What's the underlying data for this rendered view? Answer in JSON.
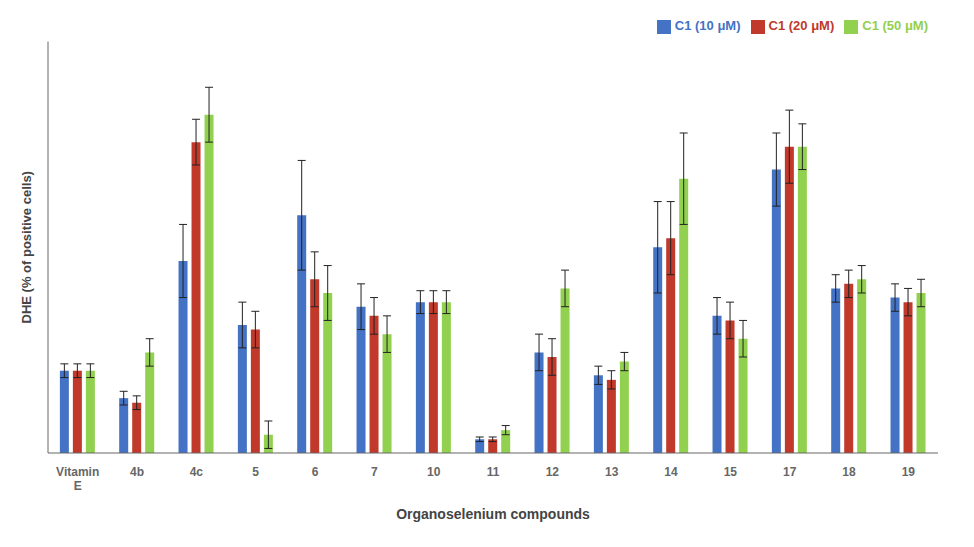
{
  "chart_data": {
    "type": "bar",
    "xlabel": "Organoselenium compounds",
    "ylabel": "DHE  (% of positive cells)",
    "categories": [
      "Vitamin\nE",
      "4b",
      "4c",
      "5",
      "6",
      "7",
      "10",
      "11",
      "12",
      "13",
      "14",
      "15",
      "17",
      "18",
      "19"
    ],
    "series": [
      {
        "name": "C1 (10 μM)",
        "color": "#4472C4",
        "values": [
          18,
          12,
          42,
          28,
          52,
          32,
          33,
          3,
          22,
          17,
          45,
          30,
          62,
          36,
          34
        ],
        "errors": [
          1.5,
          1.5,
          8,
          5,
          12,
          5,
          2.5,
          0.5,
          4,
          2,
          10,
          4,
          8,
          3,
          3
        ]
      },
      {
        "name": "C1 (20 μM)",
        "color": "#C0392B",
        "values": [
          18,
          11,
          68,
          27,
          38,
          30,
          33,
          3,
          21,
          16,
          47,
          29,
          67,
          37,
          33
        ],
        "errors": [
          1.5,
          1.5,
          5,
          4,
          6,
          4,
          2.5,
          0.5,
          4,
          2,
          8,
          4,
          8,
          3,
          3
        ]
      },
      {
        "name": "C1 (50 μM)",
        "color": "#92D050",
        "values": [
          18,
          22,
          74,
          4,
          35,
          26,
          33,
          5,
          36,
          20,
          60,
          25,
          67,
          38,
          35
        ],
        "errors": [
          1.5,
          3,
          6,
          3,
          6,
          4,
          2.5,
          1,
          4,
          2,
          10,
          4,
          5,
          3,
          3
        ]
      }
    ],
    "ylim": [
      0,
      90
    ],
    "tick_labels": "x",
    "legend": "upper right",
    "grid": false
  }
}
